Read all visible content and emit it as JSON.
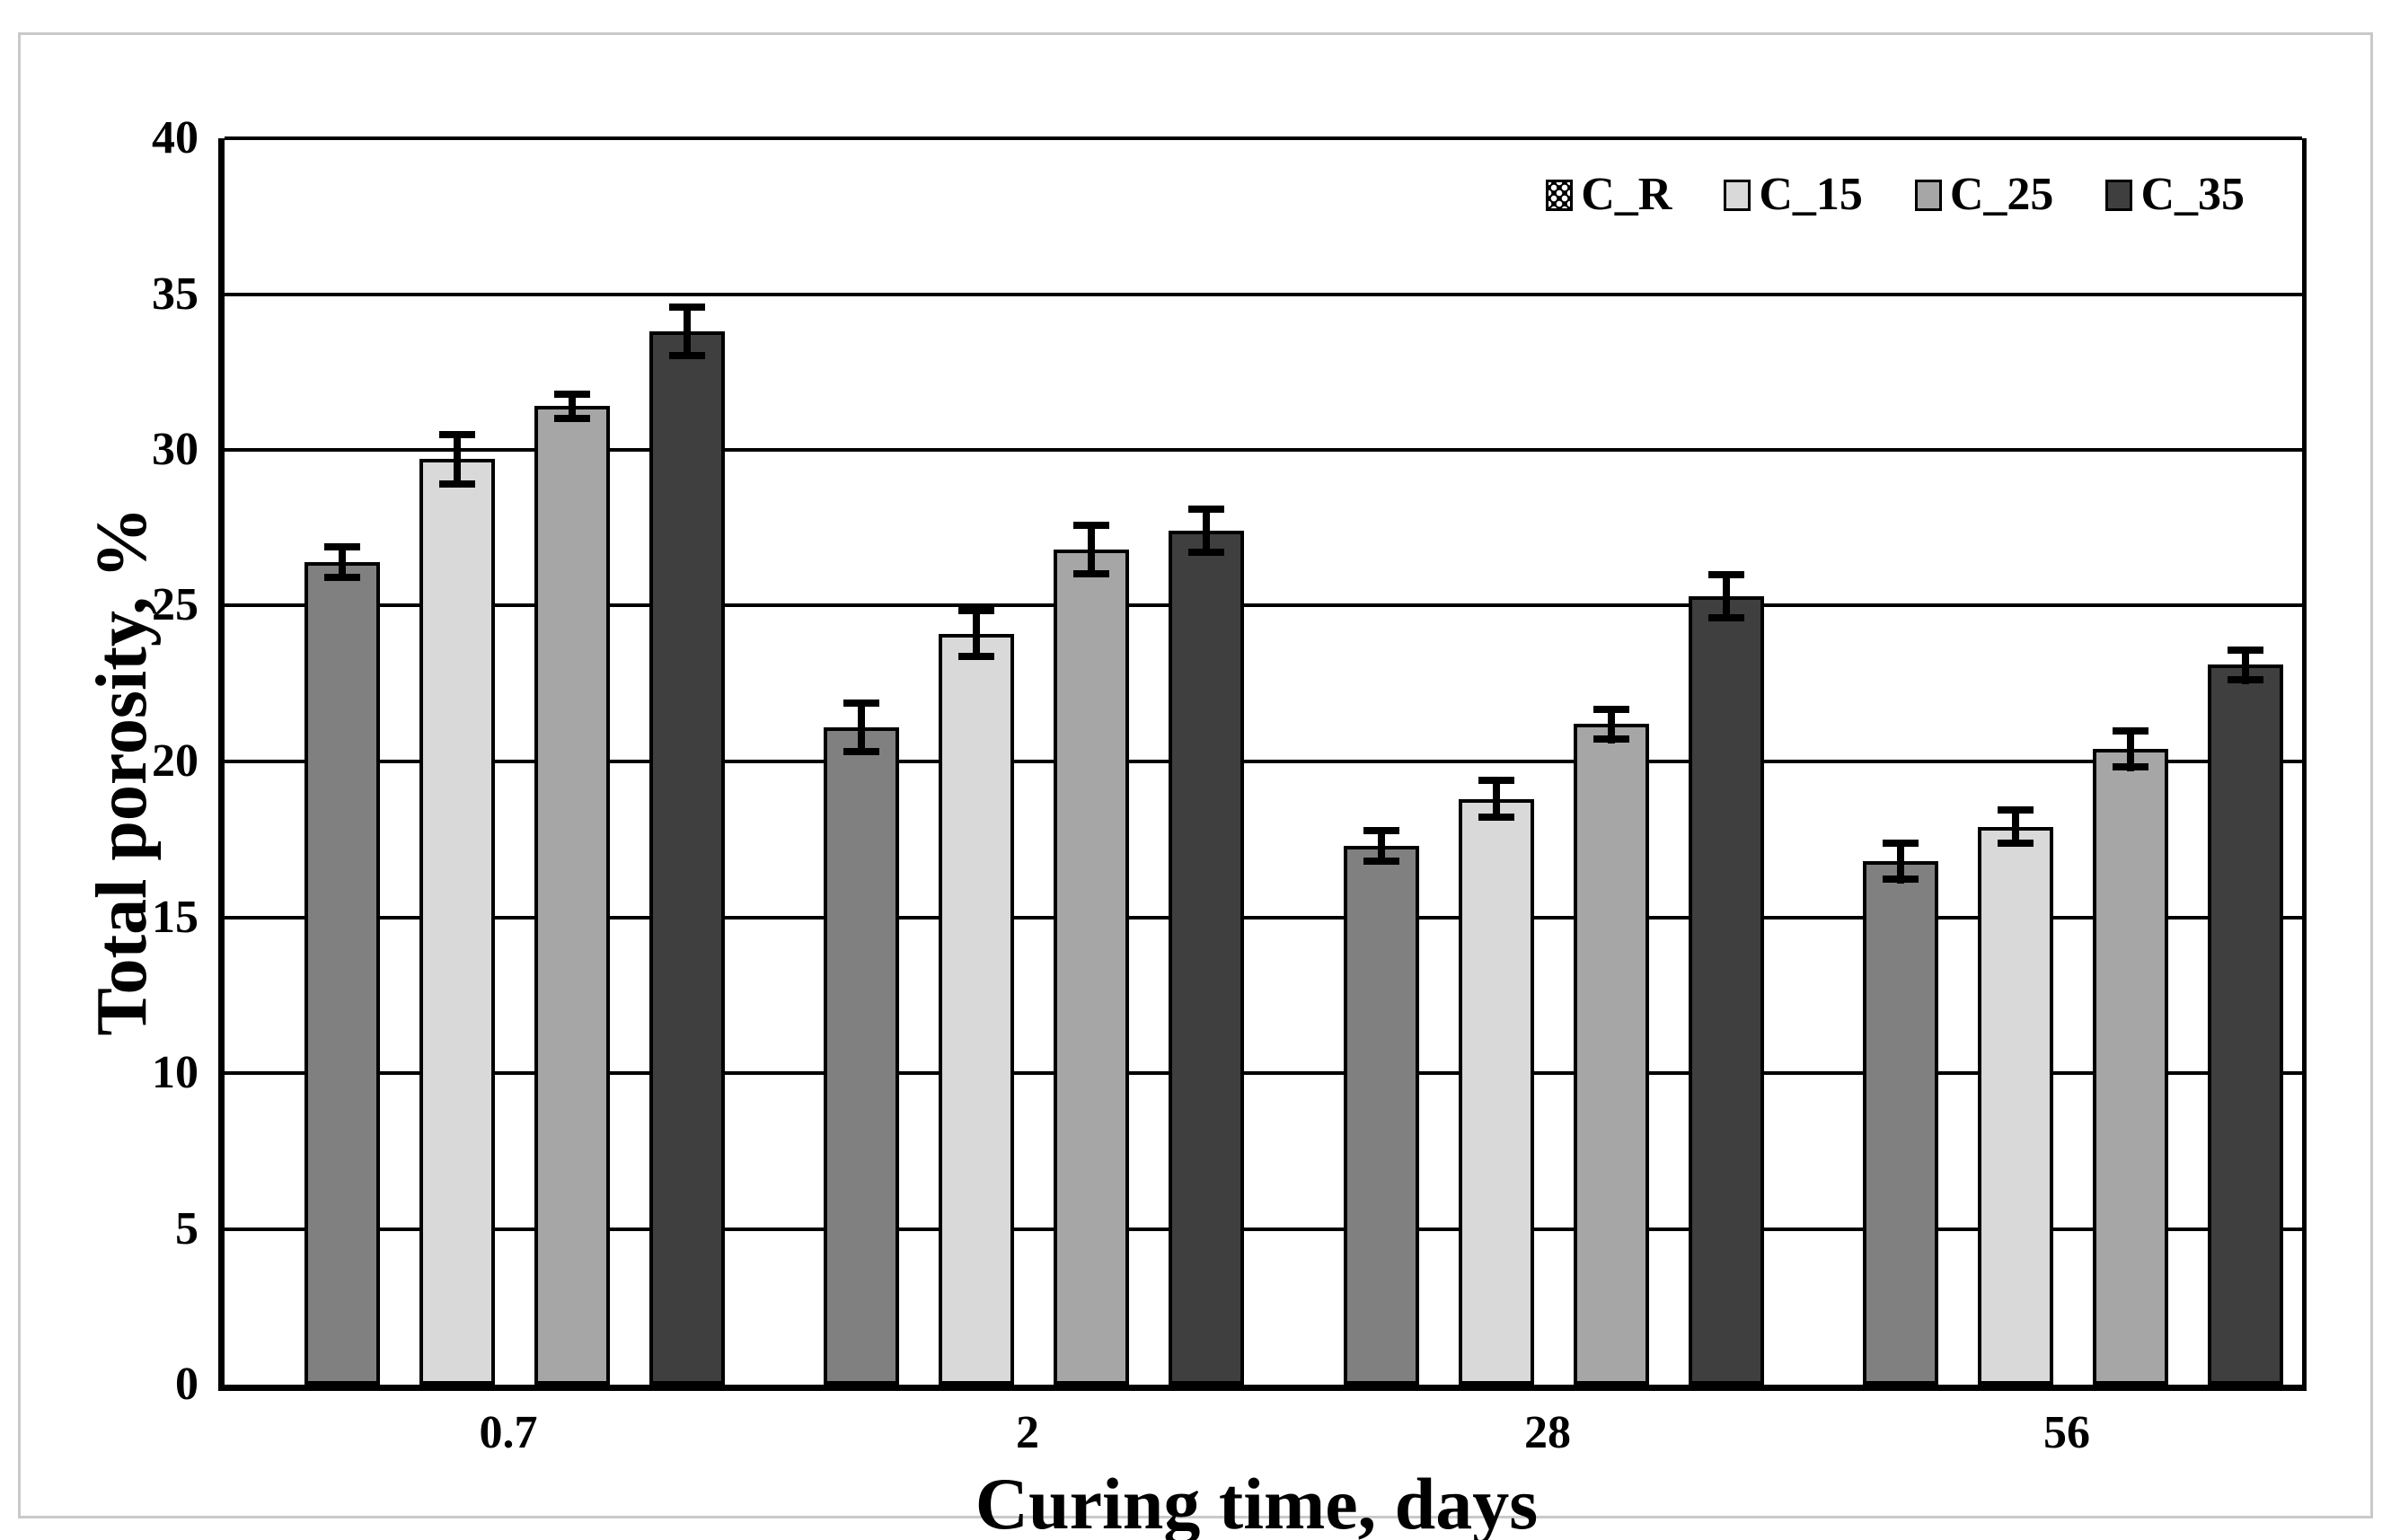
{
  "figure": {
    "x_axis_title": "Curing time, days",
    "y_axis_title": "Total porosity, %",
    "frame_border_color": "#c9c9c9",
    "background_color": "#ffffff",
    "axis_color": "#000000"
  },
  "chart_data": {
    "type": "bar",
    "title": "",
    "xlabel": "Curing time, days",
    "ylabel": "Total porosity, %",
    "categories": [
      "0.7",
      "2",
      "28",
      "56"
    ],
    "series": [
      {
        "name": "C_R",
        "color": "#808080",
        "legend_swatch": "black-with-white-dots",
        "values": [
          26.4,
          21.1,
          17.3,
          16.8
        ],
        "errors": [
          0.6,
          0.9,
          0.6,
          0.7
        ]
      },
      {
        "name": "C_15",
        "color": "#d9d9d9",
        "legend_swatch": "solid",
        "values": [
          29.7,
          24.1,
          18.8,
          17.9
        ],
        "errors": [
          0.9,
          0.85,
          0.7,
          0.65
        ]
      },
      {
        "name": "C_25",
        "color": "#a6a6a6",
        "legend_swatch": "solid",
        "values": [
          31.4,
          26.8,
          21.2,
          20.4
        ],
        "errors": [
          0.5,
          0.9,
          0.6,
          0.7
        ]
      },
      {
        "name": "C_35",
        "color": "#3f3f3f",
        "legend_swatch": "solid",
        "values": [
          33.8,
          27.4,
          25.3,
          23.1
        ],
        "errors": [
          0.9,
          0.8,
          0.8,
          0.6
        ]
      }
    ],
    "ylim": [
      0,
      40
    ],
    "yticks": [
      0,
      5,
      10,
      15,
      20,
      25,
      30,
      35,
      40
    ],
    "ytick_step": 5,
    "grid": true,
    "gridline_color": "#000000",
    "bar_border_color": "#000000",
    "error_bar_color": "#000000",
    "legend_position": "top-right-inside",
    "legend_entries": [
      "C_R",
      "C_15",
      "C_25",
      "C_35"
    ]
  }
}
